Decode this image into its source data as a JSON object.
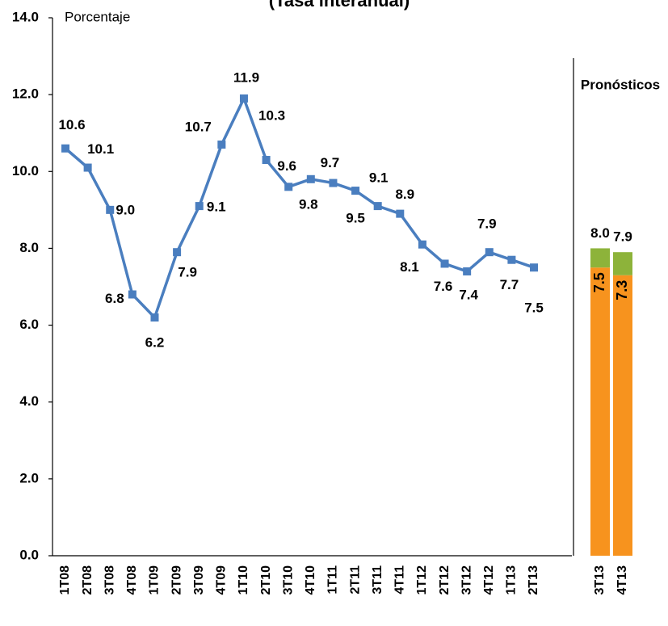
{
  "chart_data": {
    "type": "line",
    "title": "(Tasa interanual)",
    "y_label": "Porcentaje",
    "categories": [
      "1T08",
      "2T08",
      "3T08",
      "4T08",
      "1T09",
      "2T09",
      "3T09",
      "4T09",
      "1T10",
      "2T10",
      "3T10",
      "4T10",
      "1T11",
      "2T11",
      "3T11",
      "4T11",
      "1T12",
      "2T12",
      "3T12",
      "4T12",
      "1T13",
      "2T13"
    ],
    "values": [
      10.6,
      10.1,
      9.0,
      6.8,
      6.2,
      7.9,
      9.1,
      10.7,
      11.9,
      10.3,
      9.6,
      9.8,
      9.7,
      9.5,
      9.1,
      8.9,
      8.1,
      7.6,
      7.4,
      7.9,
      7.7,
      7.5
    ],
    "value_labels": [
      "10.6",
      "10.1",
      "9.0",
      "6.8",
      "6.2",
      "7.9",
      "9.1",
      "10.7",
      "11.9",
      "10.3",
      "9.6",
      "9.8",
      "9.7",
      "9.5",
      "9.1",
      "8.9",
      "8.1",
      "7.6",
      "7.4",
      "7.9",
      "7.7",
      "7.5"
    ],
    "color": "#4a7ebf",
    "ylim": [
      0,
      14
    ],
    "yticks": [
      {
        "value": 0,
        "label": "0.0"
      },
      {
        "value": 2,
        "label": "2.0"
      },
      {
        "value": 4,
        "label": "4.0"
      },
      {
        "value": 6,
        "label": "6.0"
      },
      {
        "value": 8,
        "label": "8.0"
      },
      {
        "value": 10,
        "label": "10.0"
      },
      {
        "value": 12,
        "label": "12.0"
      },
      {
        "value": 14,
        "label": "14.0"
      }
    ],
    "forecast": {
      "label": "Pronósticos",
      "categories": [
        "3T13",
        "4T13"
      ],
      "base_values": [
        7.5,
        7.3
      ],
      "base_labels": [
        "7.5",
        "7.3"
      ],
      "base_color": "#f7931e",
      "top_values": [
        8.0,
        7.9
      ],
      "top_labels": [
        "8.0",
        "7.9"
      ],
      "top_color": "#8db33a"
    }
  }
}
